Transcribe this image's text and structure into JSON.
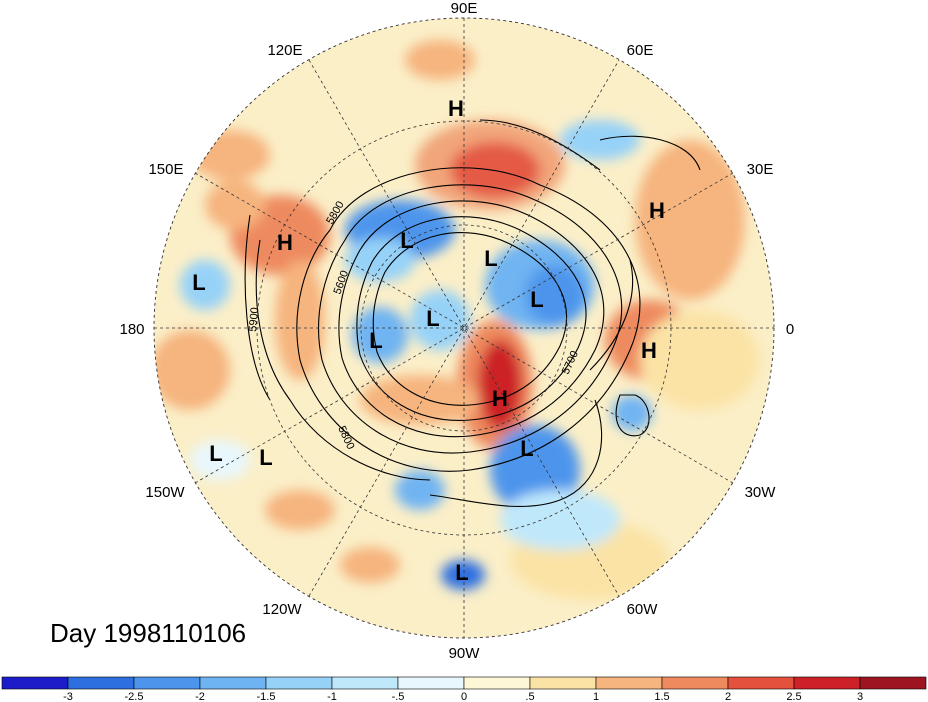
{
  "title": "Day 1998110106",
  "lon_labels": {
    "n90e": "90E",
    "n120e": "120E",
    "n60e": "60E",
    "n150e": "150E",
    "n30e": "30E",
    "n180": "180",
    "n0": "0",
    "n150w": "150W",
    "n30w": "30W",
    "n120w": "120W",
    "n60w": "60W",
    "n90w": "90W"
  },
  "contour_labels": {
    "c5800a": "5800",
    "c5600": "5600",
    "c5900": "5900",
    "c5800b": "5800",
    "c5700": "5700"
  },
  "pressure_centers": [
    {
      "type": "H",
      "label": "H"
    },
    {
      "type": "H",
      "label": "H"
    },
    {
      "type": "H",
      "label": "H"
    },
    {
      "type": "H",
      "label": "H"
    },
    {
      "type": "H",
      "label": "H"
    },
    {
      "type": "L",
      "label": "L"
    },
    {
      "type": "L",
      "label": "L"
    },
    {
      "type": "L",
      "label": "L"
    },
    {
      "type": "L",
      "label": "L"
    },
    {
      "type": "L",
      "label": "L"
    },
    {
      "type": "L",
      "label": "L"
    },
    {
      "type": "L",
      "label": "L"
    },
    {
      "type": "L",
      "label": "L"
    },
    {
      "type": "L",
      "label": "L"
    },
    {
      "type": "L",
      "label": "L"
    }
  ],
  "colorbar": {
    "labels": [
      "-3",
      "-2.5",
      "-2",
      "-1.5",
      "-1",
      "-.5",
      "0",
      ".5",
      "1",
      "1.5",
      "2",
      "2.5",
      "3"
    ],
    "colors": [
      "#1c1cc8",
      "#2e6fe0",
      "#4d95ec",
      "#6fb4f2",
      "#96d2f8",
      "#c0e8fb",
      "#e8f7fd",
      "#fdf7d8",
      "#fbe3a6",
      "#f6b47e",
      "#ee8a5e",
      "#e4513c",
      "#cc2128",
      "#9e1420"
    ]
  },
  "colors": {
    "background": "#ffffff",
    "map_base": "#fbefc8",
    "grid": "#333333",
    "contour": "#000000"
  }
}
